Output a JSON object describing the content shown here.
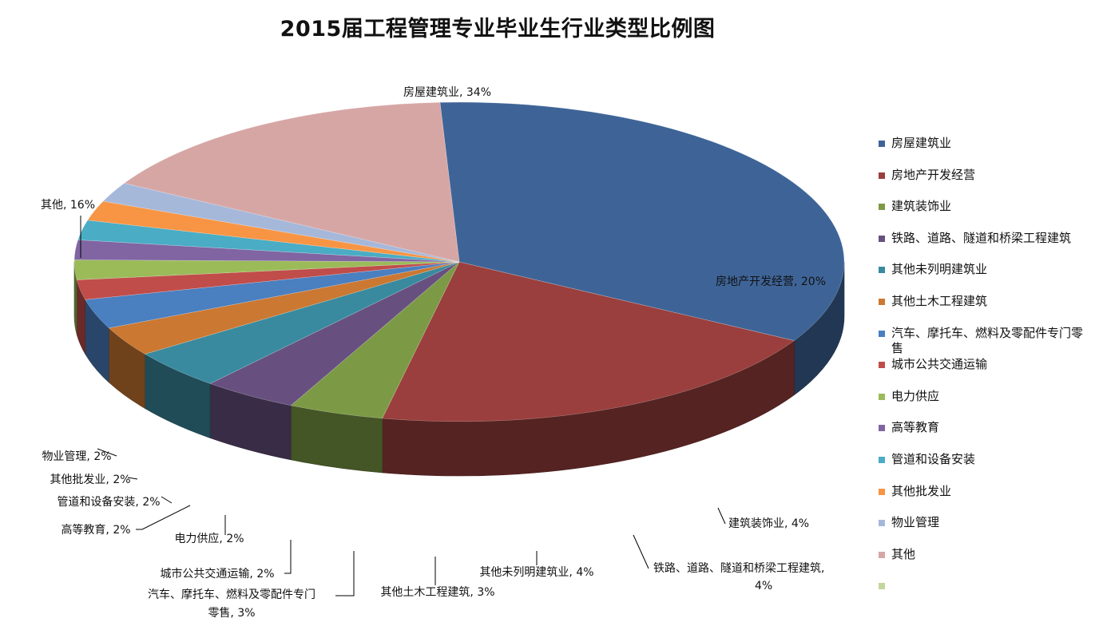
{
  "chart_data": {
    "type": "pie",
    "title": "2015届工程管理专业毕业生行业类型比例图",
    "legend_position": "right",
    "slices": [
      {
        "label": "房屋建筑业",
        "value": 34,
        "color": "#3E6497",
        "data_label": "房屋建筑业, 34%"
      },
      {
        "label": "房地产开发经营",
        "value": 20,
        "color": "#9A3F3D",
        "data_label": "房地产开发经营, 20%"
      },
      {
        "label": "建筑装饰业",
        "value": 4,
        "color": "#7C9A45",
        "data_label": "建筑装饰业, 4%"
      },
      {
        "label": "铁路、道路、隧道和桥梁工程建筑",
        "value": 4,
        "color": "#67507F",
        "data_label": "铁路、道路、隧道和桥梁工程建筑, 4%"
      },
      {
        "label": "其他未列明建筑业",
        "value": 4,
        "color": "#398A9E",
        "data_label": "其他未列明建筑业, 4%"
      },
      {
        "label": "其他土木工程建筑",
        "value": 3,
        "color": "#CB7832",
        "data_label": "其他土木工程建筑, 3%"
      },
      {
        "label": "汽车、摩托车、燃料及零配件专门零售",
        "value": 3,
        "color": "#4A7FC0",
        "data_label": "汽车、摩托车、燃料及零配件专门零售, 3%"
      },
      {
        "label": "城市公共交通运输",
        "value": 2,
        "color": "#C04D4A",
        "data_label": "城市公共交通运输, 2%"
      },
      {
        "label": "电力供应",
        "value": 2,
        "color": "#9BBB59",
        "data_label": "电力供应, 2%"
      },
      {
        "label": "高等教育",
        "value": 2,
        "color": "#8065A2",
        "data_label": "高等教育, 2%"
      },
      {
        "label": "管道和设备安装",
        "value": 2,
        "color": "#4AACC5",
        "data_label": "管道和设备安装, 2%"
      },
      {
        "label": "其他批发业",
        "value": 2,
        "color": "#F79545",
        "data_label": "其他批发业, 2%"
      },
      {
        "label": "物业管理",
        "value": 2,
        "color": "#A6B8DA",
        "data_label": "物业管理, 2%"
      },
      {
        "label": "其他",
        "value": 16,
        "color": "#D6A6A5",
        "data_label": "其他, 16%"
      },
      {
        "label": "",
        "value": 0,
        "color": "#C3D69B",
        "data_label": ""
      }
    ]
  }
}
